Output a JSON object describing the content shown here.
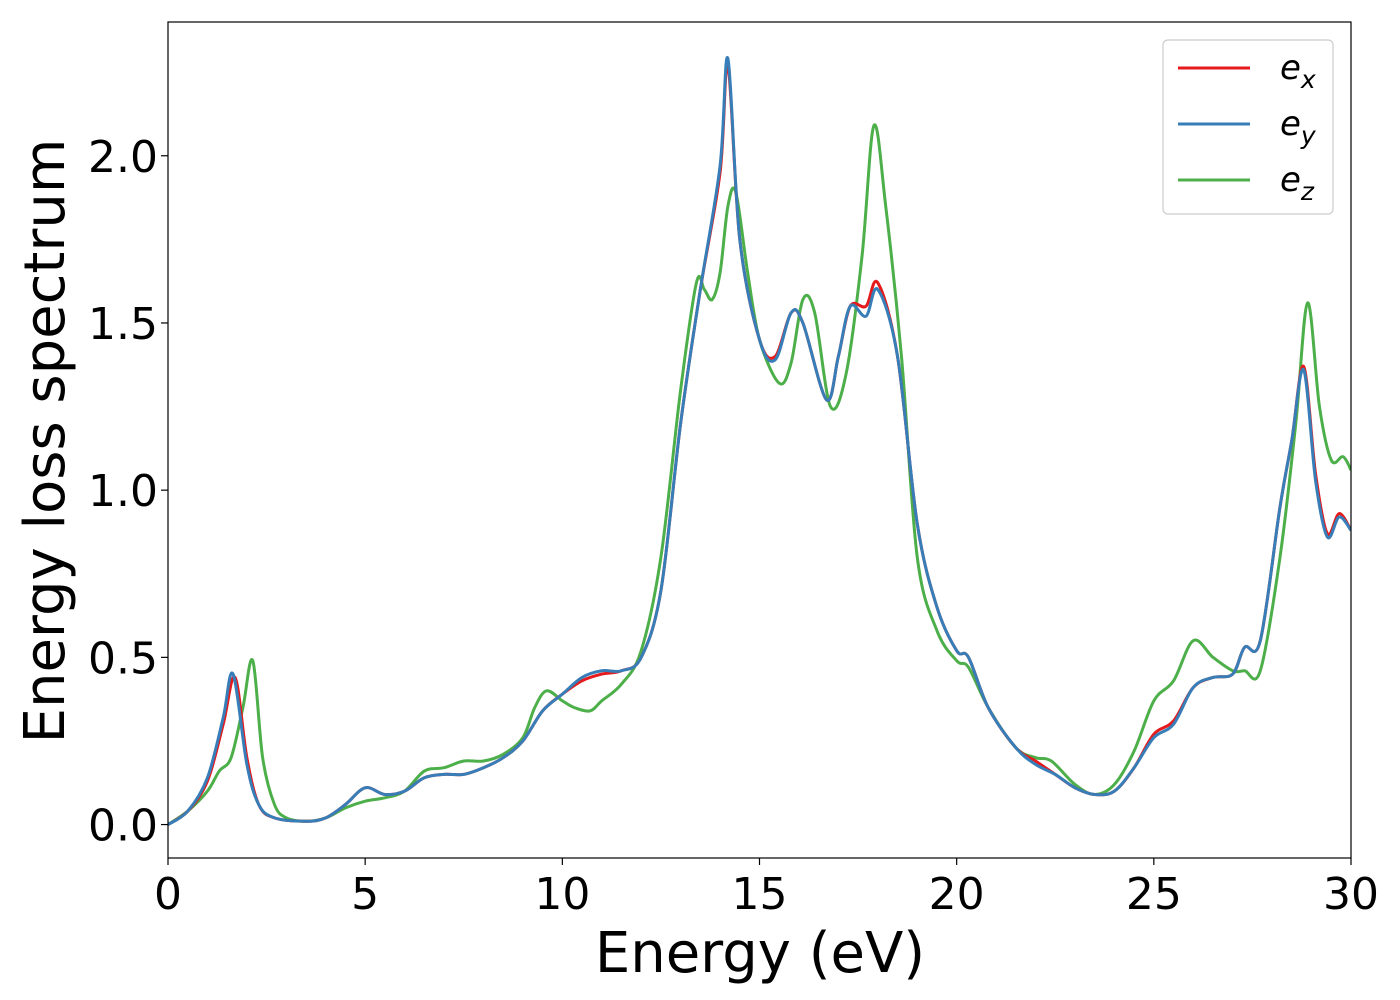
{
  "chart_data": {
    "type": "line",
    "xlabel": "Energy (eV)",
    "ylabel": "Energy loss spectrum",
    "xlim": [
      0,
      30
    ],
    "ylim": [
      -0.1,
      2.4
    ],
    "xticks": [
      0,
      5,
      10,
      15,
      20,
      25,
      30
    ],
    "yticks": [
      0.0,
      0.5,
      1.0,
      1.5,
      2.0
    ],
    "xtick_labels": [
      "0",
      "5",
      "10",
      "15",
      "20",
      "25",
      "30"
    ],
    "ytick_labels": [
      "0.0",
      "0.5",
      "1.0",
      "1.5",
      "2.0"
    ],
    "grid": false,
    "legend": "top-right",
    "series": [
      {
        "name": "e",
        "subscript": "x",
        "color": "#e41a1c",
        "points": [
          [
            0,
            0
          ],
          [
            0.5,
            0.04
          ],
          [
            1,
            0.13
          ],
          [
            1.4,
            0.3
          ],
          [
            1.7,
            0.44
          ],
          [
            2,
            0.2
          ],
          [
            2.3,
            0.06
          ],
          [
            2.7,
            0.02
          ],
          [
            3.5,
            0.01
          ],
          [
            4,
            0.02
          ],
          [
            4.5,
            0.06
          ],
          [
            5,
            0.11
          ],
          [
            5.5,
            0.09
          ],
          [
            6,
            0.1
          ],
          [
            6.5,
            0.14
          ],
          [
            7,
            0.15
          ],
          [
            7.5,
            0.15
          ],
          [
            8,
            0.17
          ],
          [
            8.5,
            0.2
          ],
          [
            9,
            0.25
          ],
          [
            9.5,
            0.34
          ],
          [
            10,
            0.39
          ],
          [
            10.5,
            0.43
          ],
          [
            11,
            0.45
          ],
          [
            11.5,
            0.46
          ],
          [
            12,
            0.5
          ],
          [
            12.5,
            0.7
          ],
          [
            13,
            1.2
          ],
          [
            13.5,
            1.6
          ],
          [
            14,
            1.95
          ],
          [
            14.2,
            2.27
          ],
          [
            14.5,
            1.75
          ],
          [
            15,
            1.45
          ],
          [
            15.4,
            1.4
          ],
          [
            15.8,
            1.53
          ],
          [
            16.1,
            1.5
          ],
          [
            16.7,
            1.27
          ],
          [
            17,
            1.4
          ],
          [
            17.3,
            1.55
          ],
          [
            17.7,
            1.55
          ],
          [
            18,
            1.62
          ],
          [
            18.5,
            1.4
          ],
          [
            19,
            0.9
          ],
          [
            19.5,
            0.65
          ],
          [
            20,
            0.52
          ],
          [
            20.3,
            0.5
          ],
          [
            20.8,
            0.35
          ],
          [
            21.5,
            0.23
          ],
          [
            22,
            0.19
          ],
          [
            22.5,
            0.15
          ],
          [
            23,
            0.11
          ],
          [
            23.5,
            0.09
          ],
          [
            24,
            0.1
          ],
          [
            24.5,
            0.17
          ],
          [
            25,
            0.27
          ],
          [
            25.5,
            0.31
          ],
          [
            26,
            0.41
          ],
          [
            26.5,
            0.44
          ],
          [
            27,
            0.45
          ],
          [
            27.3,
            0.53
          ],
          [
            27.7,
            0.55
          ],
          [
            28.2,
            0.95
          ],
          [
            28.5,
            1.15
          ],
          [
            28.8,
            1.37
          ],
          [
            29.1,
            1.05
          ],
          [
            29.4,
            0.87
          ],
          [
            29.7,
            0.93
          ],
          [
            30,
            0.88
          ]
        ]
      },
      {
        "name": "e",
        "subscript": "y",
        "color": "#377eb8",
        "points": [
          [
            0,
            0
          ],
          [
            0.5,
            0.04
          ],
          [
            1,
            0.14
          ],
          [
            1.4,
            0.32
          ],
          [
            1.65,
            0.45
          ],
          [
            2,
            0.18
          ],
          [
            2.3,
            0.06
          ],
          [
            2.7,
            0.02
          ],
          [
            3.5,
            0.01
          ],
          [
            4,
            0.02
          ],
          [
            4.5,
            0.06
          ],
          [
            5,
            0.11
          ],
          [
            5.5,
            0.09
          ],
          [
            6,
            0.1
          ],
          [
            6.5,
            0.14
          ],
          [
            7,
            0.15
          ],
          [
            7.5,
            0.15
          ],
          [
            8,
            0.17
          ],
          [
            8.5,
            0.2
          ],
          [
            9,
            0.25
          ],
          [
            9.5,
            0.34
          ],
          [
            10,
            0.39
          ],
          [
            10.5,
            0.44
          ],
          [
            11,
            0.46
          ],
          [
            11.5,
            0.46
          ],
          [
            12,
            0.5
          ],
          [
            12.5,
            0.7
          ],
          [
            13,
            1.2
          ],
          [
            13.5,
            1.6
          ],
          [
            14,
            1.97
          ],
          [
            14.2,
            2.29
          ],
          [
            14.5,
            1.75
          ],
          [
            15,
            1.45
          ],
          [
            15.4,
            1.39
          ],
          [
            15.8,
            1.53
          ],
          [
            16.1,
            1.5
          ],
          [
            16.7,
            1.27
          ],
          [
            17,
            1.4
          ],
          [
            17.3,
            1.55
          ],
          [
            17.7,
            1.52
          ],
          [
            18,
            1.6
          ],
          [
            18.5,
            1.4
          ],
          [
            19,
            0.9
          ],
          [
            19.5,
            0.65
          ],
          [
            20,
            0.52
          ],
          [
            20.3,
            0.5
          ],
          [
            20.8,
            0.35
          ],
          [
            21.5,
            0.23
          ],
          [
            22,
            0.18
          ],
          [
            22.5,
            0.15
          ],
          [
            23,
            0.11
          ],
          [
            23.5,
            0.09
          ],
          [
            24,
            0.1
          ],
          [
            24.5,
            0.17
          ],
          [
            25,
            0.26
          ],
          [
            25.5,
            0.3
          ],
          [
            26,
            0.41
          ],
          [
            26.5,
            0.44
          ],
          [
            27,
            0.45
          ],
          [
            27.3,
            0.53
          ],
          [
            27.7,
            0.55
          ],
          [
            28.2,
            0.95
          ],
          [
            28.5,
            1.15
          ],
          [
            28.8,
            1.36
          ],
          [
            29.1,
            1.03
          ],
          [
            29.4,
            0.86
          ],
          [
            29.7,
            0.92
          ],
          [
            30,
            0.88
          ]
        ]
      },
      {
        "name": "e",
        "subscript": "z",
        "color": "#4daf4a",
        "points": [
          [
            0,
            0
          ],
          [
            0.5,
            0.04
          ],
          [
            1,
            0.1
          ],
          [
            1.3,
            0.16
          ],
          [
            1.6,
            0.2
          ],
          [
            1.9,
            0.35
          ],
          [
            2.15,
            0.49
          ],
          [
            2.4,
            0.2
          ],
          [
            2.7,
            0.06
          ],
          [
            3,
            0.02
          ],
          [
            3.5,
            0.01
          ],
          [
            4,
            0.02
          ],
          [
            4.5,
            0.05
          ],
          [
            5,
            0.07
          ],
          [
            5.5,
            0.08
          ],
          [
            6,
            0.1
          ],
          [
            6.5,
            0.16
          ],
          [
            7,
            0.17
          ],
          [
            7.5,
            0.19
          ],
          [
            8,
            0.19
          ],
          [
            8.5,
            0.21
          ],
          [
            9,
            0.26
          ],
          [
            9.3,
            0.35
          ],
          [
            9.6,
            0.4
          ],
          [
            10,
            0.37
          ],
          [
            10.3,
            0.35
          ],
          [
            10.7,
            0.34
          ],
          [
            11,
            0.37
          ],
          [
            11.5,
            0.42
          ],
          [
            12,
            0.52
          ],
          [
            12.5,
            0.8
          ],
          [
            13,
            1.3
          ],
          [
            13.4,
            1.62
          ],
          [
            13.6,
            1.6
          ],
          [
            13.8,
            1.57
          ],
          [
            14,
            1.65
          ],
          [
            14.2,
            1.85
          ],
          [
            14.4,
            1.89
          ],
          [
            14.7,
            1.65
          ],
          [
            15,
            1.45
          ],
          [
            15.5,
            1.32
          ],
          [
            15.8,
            1.38
          ],
          [
            16.1,
            1.57
          ],
          [
            16.4,
            1.53
          ],
          [
            16.8,
            1.25
          ],
          [
            17.2,
            1.35
          ],
          [
            17.6,
            1.7
          ],
          [
            17.9,
            2.09
          ],
          [
            18.2,
            1.85
          ],
          [
            18.6,
            1.4
          ],
          [
            19,
            0.8
          ],
          [
            19.5,
            0.58
          ],
          [
            20,
            0.49
          ],
          [
            20.3,
            0.47
          ],
          [
            20.8,
            0.35
          ],
          [
            21.5,
            0.23
          ],
          [
            22,
            0.2
          ],
          [
            22.4,
            0.19
          ],
          [
            23,
            0.12
          ],
          [
            23.5,
            0.09
          ],
          [
            24,
            0.12
          ],
          [
            24.5,
            0.22
          ],
          [
            25,
            0.37
          ],
          [
            25.5,
            0.43
          ],
          [
            26,
            0.55
          ],
          [
            26.5,
            0.5
          ],
          [
            27,
            0.46
          ],
          [
            27.3,
            0.46
          ],
          [
            27.7,
            0.46
          ],
          [
            28.2,
            0.8
          ],
          [
            28.6,
            1.2
          ],
          [
            28.9,
            1.56
          ],
          [
            29.2,
            1.25
          ],
          [
            29.5,
            1.09
          ],
          [
            29.8,
            1.1
          ],
          [
            30,
            1.06
          ]
        ]
      }
    ]
  }
}
